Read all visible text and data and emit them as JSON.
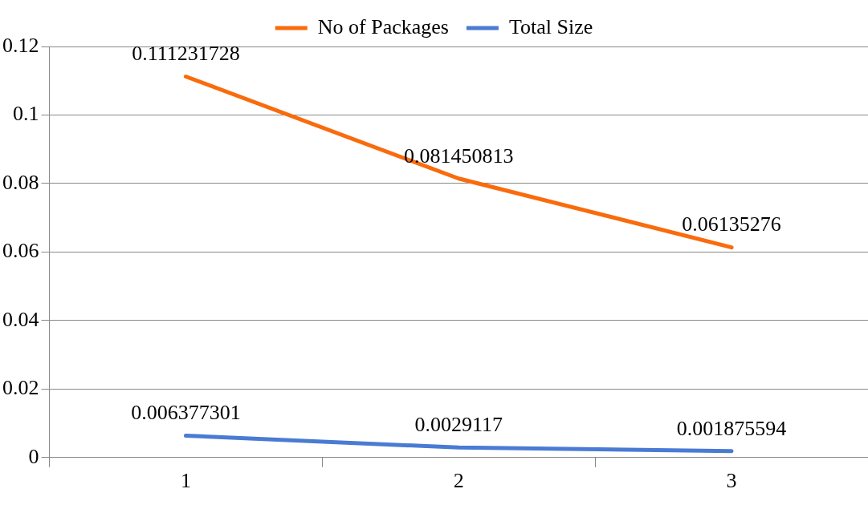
{
  "chart_data": {
    "type": "line",
    "categories": [
      "1",
      "2",
      "3"
    ],
    "series": [
      {
        "name": "No of Packages",
        "color": "#f96b0c",
        "values": [
          0.111231728,
          0.081450813,
          0.06135276
        ]
      },
      {
        "name": "Total Size",
        "color": "#4a7bd4",
        "values": [
          0.006377301,
          0.0029117,
          0.001875594
        ]
      }
    ],
    "ylim": [
      0,
      0.12
    ],
    "yticks": [
      0,
      0.02,
      0.04,
      0.06,
      0.08,
      0.1,
      0.12
    ],
    "grid": "y",
    "legend": "top",
    "marker": "none",
    "line_style": "solid",
    "data_labels": true
  }
}
